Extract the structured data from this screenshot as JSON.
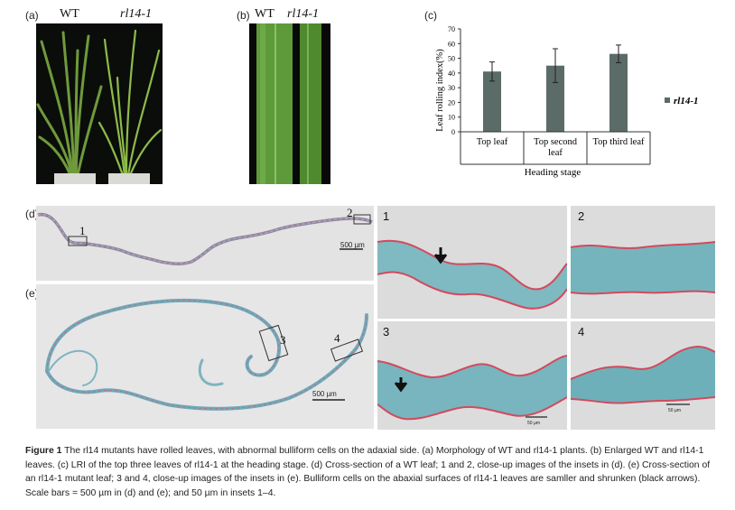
{
  "panels": {
    "a": {
      "label": "(a)",
      "wt": "WT",
      "mutant": "rl14-1"
    },
    "b": {
      "label": "(b)",
      "wt": "WT",
      "mutant": "rl14-1"
    },
    "c": {
      "label": "(c)"
    },
    "d": {
      "label": "(d)",
      "inset1": "1",
      "inset2": "2",
      "scale": "500 µm"
    },
    "e": {
      "label": "(e)",
      "inset3": "3",
      "inset4": "4",
      "scale": "500 µm"
    },
    "closeups": {
      "n1": "1",
      "n2": "2",
      "n3": "3",
      "n4": "4",
      "scale3": "50 µm",
      "scale4": "50 µm"
    }
  },
  "chart_data": {
    "type": "bar",
    "ylabel": "Leaf rolling index(%)",
    "xlabel": "Heading stage",
    "ylim": [
      0,
      70
    ],
    "yticks": [
      "0",
      "10",
      "20",
      "30",
      "40",
      "50",
      "60",
      "70"
    ],
    "categories": [
      "Top leaf",
      "Top second leaf",
      "Top third leaf"
    ],
    "category_lines": [
      [
        "Top leaf"
      ],
      [
        "Top second",
        "leaf"
      ],
      [
        "Top third leaf"
      ]
    ],
    "series": [
      {
        "name": "rl14-1",
        "values": [
          41,
          45,
          53
        ],
        "errors": [
          6.5,
          11.5,
          6
        ]
      }
    ],
    "legend_position": "right",
    "bar_color": "#5b6b68"
  },
  "caption": {
    "fig": "Figure 1",
    "text": "The rl14 mutants have rolled leaves, with abnormal bulliform cells on the adaxial side. (a) Morphology of WT and rl14-1 plants. (b) Enlarged WT and rl14-1 leaves. (c) LRI of the top three leaves of rl14-1 at the heading stage. (d) Cross-section of a WT leaf; 1 and 2, close-up images of the insets in (d). (e) Cross-section of an rl14-1 mutant leaf; 3 and 4, close-up images of the insets in (e). Bulliform cells on the abaxial surfaces of rl14-1 leaves are samller and shrunken (black arrows). Scale bars = 500 µm in (d) and (e); and 50 µm in insets 1–4."
  }
}
